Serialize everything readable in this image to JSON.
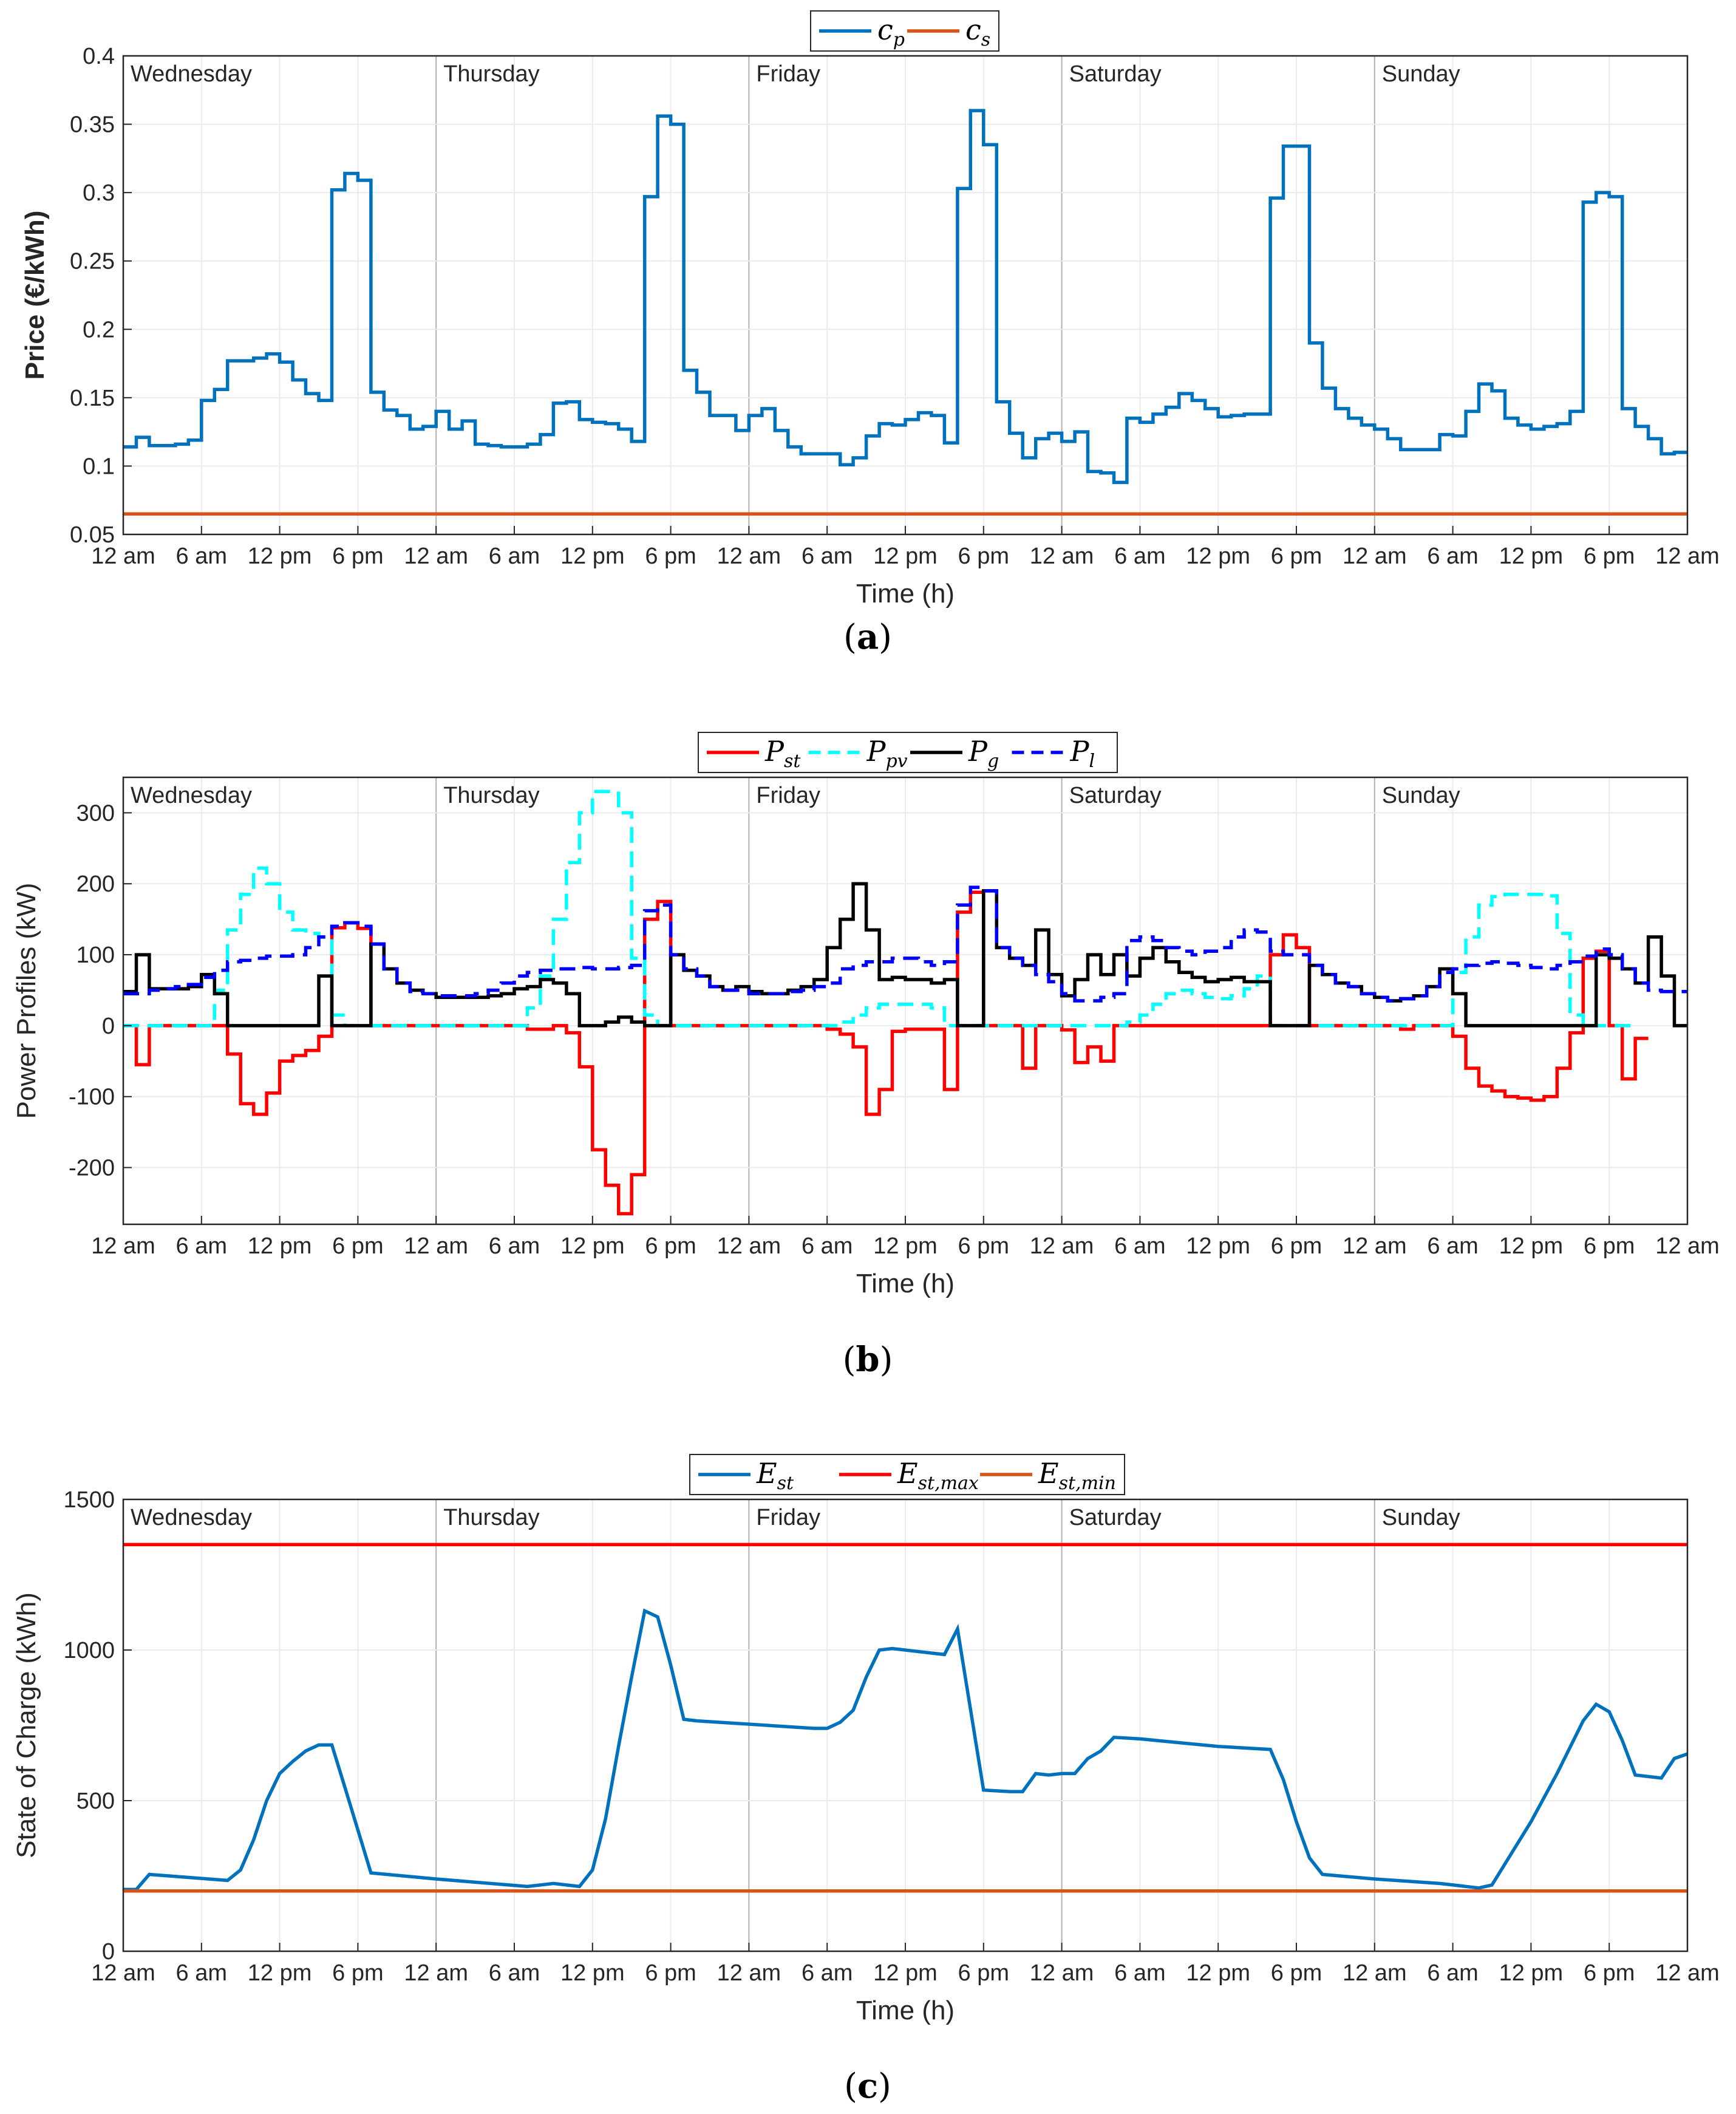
{
  "figure": {
    "caption_a": "a",
    "caption_b": "b",
    "caption_c": "c"
  },
  "colors": {
    "blue": "#0072BD",
    "orange": "#D95319",
    "red": "#FF0000",
    "cyan": "#00FFFF",
    "black": "#000000",
    "dblue": "#0000FF",
    "grid": "#EBEBEB",
    "day_sep": "#B0B0B0"
  },
  "chart_data": [
    {
      "id": "a",
      "type": "line",
      "step": true,
      "title": "",
      "xlabel": "Time (h)",
      "ylabel": "Price (€/kWh)",
      "xlim": [
        0,
        120
      ],
      "ylim": [
        0.05,
        0.4
      ],
      "yticks": [
        0.05,
        0.1,
        0.15,
        0.2,
        0.25,
        0.3,
        0.35,
        0.4
      ],
      "ytick_labels": [
        "0.05",
        "0.1",
        "0.15",
        "0.2",
        "0.25",
        "0.3",
        "0.35",
        "0.4"
      ],
      "xticks": [
        0,
        6,
        12,
        18,
        24,
        30,
        36,
        42,
        48,
        54,
        60,
        66,
        72,
        78,
        84,
        90,
        96,
        102,
        108,
        114,
        120
      ],
      "xtick_labels": [
        "12 am",
        "6 am",
        "12 pm",
        "6 pm",
        "12 am",
        "6 am",
        "12 pm",
        "6 pm",
        "12 am",
        "6 am",
        "12 pm",
        "6 pm",
        "12 am",
        "6 am",
        "12 pm",
        "6 pm",
        "12 am",
        "6 am",
        "12 pm",
        "6 pm",
        "12 am"
      ],
      "days": [
        "Wednesday",
        "Thursday",
        "Friday",
        "Saturday",
        "Sunday"
      ],
      "legend": [
        "c_p",
        "c_s"
      ],
      "legend_position": "top",
      "grid": true,
      "series": [
        {
          "name": "c_p",
          "color": "#0072BD",
          "dash": "solid",
          "values": [
            0.114,
            0.121,
            0.115,
            0.115,
            0.116,
            0.119,
            0.148,
            0.156,
            0.177,
            0.177,
            0.179,
            0.182,
            0.176,
            0.163,
            0.153,
            0.148,
            0.302,
            0.314,
            0.309,
            0.154,
            0.141,
            0.137,
            0.127,
            0.129,
            0.14,
            0.127,
            0.133,
            0.116,
            0.115,
            0.114,
            0.114,
            0.116,
            0.123,
            0.146,
            0.147,
            0.134,
            0.132,
            0.131,
            0.127,
            0.118,
            0.297,
            0.356,
            0.35,
            0.17,
            0.154,
            0.137,
            0.137,
            0.126,
            0.137,
            0.142,
            0.126,
            0.114,
            0.109,
            0.109,
            0.109,
            0.101,
            0.106,
            0.122,
            0.131,
            0.13,
            0.134,
            0.139,
            0.137,
            0.117,
            0.303,
            0.36,
            0.335,
            0.147,
            0.124,
            0.106,
            0.12,
            0.124,
            0.118,
            0.125,
            0.096,
            0.095,
            0.088,
            0.135,
            0.132,
            0.138,
            0.143,
            0.153,
            0.148,
            0.142,
            0.136,
            0.137,
            0.138,
            0.138,
            0.296,
            0.334,
            0.334,
            0.19,
            0.157,
            0.142,
            0.135,
            0.13,
            0.127,
            0.12,
            0.112,
            0.112,
            0.112,
            0.123,
            0.122,
            0.14,
            0.16,
            0.155,
            0.135,
            0.13,
            0.127,
            0.129,
            0.131,
            0.14,
            0.293,
            0.3,
            0.297,
            0.142,
            0.129,
            0.12,
            0.109,
            0.11
          ]
        },
        {
          "name": "c_s",
          "color": "#D95319",
          "dash": "solid",
          "values": [
            0.065
          ]
        }
      ]
    },
    {
      "id": "b",
      "type": "line",
      "step": true,
      "title": "",
      "xlabel": "Time (h)",
      "ylabel": "Power Profiles (kW)",
      "xlim": [
        0,
        120
      ],
      "ylim": [
        -280,
        350
      ],
      "yticks": [
        -200,
        -100,
        0,
        100,
        200,
        300
      ],
      "ytick_labels": [
        "-200",
        "-100",
        "0",
        "100",
        "200",
        "300"
      ],
      "xticks": [
        0,
        6,
        12,
        18,
        24,
        30,
        36,
        42,
        48,
        54,
        60,
        66,
        72,
        78,
        84,
        90,
        96,
        102,
        108,
        114,
        120
      ],
      "xtick_labels": [
        "12 am",
        "6 am",
        "12 pm",
        "6 pm",
        "12 am",
        "6 am",
        "12 pm",
        "6 pm",
        "12 am",
        "6 am",
        "12 pm",
        "6 pm",
        "12 am",
        "6 am",
        "12 pm",
        "6 pm",
        "12 am",
        "6 am",
        "12 pm",
        "6 pm",
        "12 am"
      ],
      "days": [
        "Wednesday",
        "Thursday",
        "Friday",
        "Saturday",
        "Sunday"
      ],
      "legend": [
        "P_st",
        "P_pv",
        "P_g",
        "P_l"
      ],
      "legend_position": "top",
      "grid": true,
      "series": [
        {
          "name": "P_st",
          "color": "#FF0000",
          "dash": "solid",
          "values": [
            0,
            -55,
            0,
            0,
            0,
            0,
            0,
            0,
            -40,
            -110,
            -125,
            -95,
            -50,
            -42,
            -35,
            -15,
            138,
            145,
            137,
            0,
            0,
            0,
            0,
            0,
            0,
            0,
            0,
            0,
            0,
            0,
            0,
            -5,
            -5,
            0,
            -10,
            -58,
            -175,
            -225,
            -265,
            -210,
            150,
            175,
            0,
            0,
            0,
            0,
            0,
            0,
            0,
            0,
            0,
            0,
            0,
            0,
            -5,
            -12,
            -30,
            -125,
            -90,
            -8,
            -5,
            -5,
            -5,
            -90,
            160,
            188,
            0,
            0,
            0,
            -60,
            0,
            0,
            -6,
            -52,
            -30,
            -50,
            0,
            0,
            0,
            0,
            0,
            0,
            0,
            0,
            0,
            0,
            0,
            0,
            100,
            128,
            110,
            0,
            0,
            0,
            0,
            0,
            0,
            0,
            -5,
            0,
            0,
            0,
            -15,
            -60,
            -85,
            -92,
            -100,
            -102,
            -105,
            -100,
            -60,
            -10,
            95,
            105,
            0,
            -75,
            -18
          ]
        },
        {
          "name": "P_pv",
          "color": "#00FFFF",
          "dash": "dashed",
          "values": [
            0,
            0,
            0,
            0,
            0,
            0,
            0,
            50,
            135,
            185,
            222,
            200,
            160,
            135,
            130,
            125,
            15,
            0,
            0,
            0,
            0,
            0,
            0,
            0,
            0,
            0,
            0,
            0,
            0,
            0,
            0,
            25,
            70,
            150,
            230,
            300,
            330,
            330,
            300,
            95,
            15,
            0,
            0,
            0,
            0,
            0,
            0,
            0,
            0,
            0,
            0,
            0,
            0,
            0,
            0,
            5,
            15,
            25,
            30,
            30,
            30,
            30,
            25,
            0,
            0,
            0,
            0,
            0,
            0,
            0,
            0,
            0,
            0,
            0,
            0,
            0,
            0,
            5,
            15,
            30,
            45,
            50,
            45,
            40,
            38,
            42,
            52,
            70,
            0,
            0,
            0,
            0,
            0,
            0,
            0,
            0,
            0,
            0,
            0,
            0,
            0,
            0,
            75,
            125,
            170,
            182,
            185,
            185,
            185,
            183,
            130,
            15,
            0,
            0,
            0,
            0
          ]
        },
        {
          "name": "P_g",
          "color": "#000000",
          "dash": "solid",
          "values": [
            48,
            100,
            52,
            52,
            52,
            55,
            72,
            45,
            0,
            0,
            0,
            0,
            0,
            0,
            0,
            70,
            0,
            0,
            0,
            115,
            80,
            60,
            50,
            45,
            40,
            40,
            40,
            40,
            42,
            45,
            52,
            55,
            65,
            60,
            45,
            0,
            0,
            5,
            12,
            5,
            0,
            0,
            100,
            78,
            70,
            55,
            50,
            55,
            48,
            45,
            45,
            50,
            55,
            65,
            110,
            150,
            200,
            135,
            65,
            68,
            65,
            65,
            60,
            65,
            0,
            0,
            190,
            110,
            95,
            85,
            135,
            72,
            42,
            65,
            100,
            72,
            100,
            70,
            95,
            110,
            90,
            75,
            68,
            62,
            65,
            68,
            62,
            62,
            0,
            0,
            0,
            85,
            72,
            60,
            55,
            45,
            40,
            35,
            38,
            42,
            55,
            80,
            45,
            0,
            0,
            0,
            0,
            0,
            0,
            0,
            0,
            0,
            0,
            100,
            95,
            80,
            60,
            125,
            70,
            0
          ]
        },
        {
          "name": "P_l",
          "color": "#0000FF",
          "dash": "dashed",
          "values": [
            45,
            45,
            50,
            52,
            55,
            58,
            68,
            78,
            90,
            92,
            95,
            98,
            98,
            100,
            110,
            125,
            140,
            145,
            140,
            115,
            80,
            60,
            48,
            45,
            42,
            42,
            42,
            45,
            50,
            60,
            70,
            75,
            78,
            80,
            80,
            82,
            80,
            80,
            82,
            85,
            162,
            170,
            100,
            80,
            70,
            55,
            50,
            50,
            45,
            45,
            45,
            48,
            50,
            55,
            60,
            80,
            85,
            90,
            90,
            95,
            95,
            90,
            85,
            90,
            170,
            195,
            190,
            110,
            95,
            85,
            72,
            62,
            45,
            35,
            35,
            40,
            45,
            120,
            125,
            120,
            110,
            105,
            100,
            105,
            110,
            125,
            135,
            132,
            105,
            100,
            100,
            85,
            72,
            60,
            55,
            45,
            40,
            35,
            38,
            42,
            55,
            75,
            80,
            85,
            88,
            90,
            88,
            85,
            82,
            80,
            85,
            90,
            98,
            108,
            100,
            80,
            60,
            50,
            48,
            48
          ]
        }
      ]
    },
    {
      "id": "c",
      "type": "line",
      "step": false,
      "title": "",
      "xlabel": "Time (h)",
      "ylabel": "State of Charge (kWh)",
      "xlim": [
        0,
        120
      ],
      "ylim": [
        0,
        1500
      ],
      "yticks": [
        0,
        500,
        1000,
        1500
      ],
      "ytick_labels": [
        "0",
        "500",
        "1000",
        "1500"
      ],
      "xticks": [
        0,
        6,
        12,
        18,
        24,
        30,
        36,
        42,
        48,
        54,
        60,
        66,
        72,
        78,
        84,
        90,
        96,
        102,
        108,
        114,
        120
      ],
      "xtick_labels": [
        "12 am",
        "6 am",
        "12 pm",
        "6 pm",
        "12 am",
        "6 am",
        "12 pm",
        "6 pm",
        "12 am",
        "6 am",
        "12 pm",
        "6 pm",
        "12 am",
        "6 am",
        "12 pm",
        "6 pm",
        "12 am",
        "6 am",
        "12 pm",
        "6 pm",
        "12 am"
      ],
      "days": [
        "Wednesday",
        "Thursday",
        "Friday",
        "Saturday",
        "Sunday"
      ],
      "legend": [
        "E_st",
        "E_st,max",
        "E_st,min"
      ],
      "legend_position": "top",
      "grid": true,
      "series": [
        {
          "name": "E_st",
          "color": "#0072BD",
          "dash": "solid",
          "x": [
            0,
            1,
            2,
            8,
            9,
            10,
            11,
            12,
            13,
            14,
            15,
            16,
            17,
            19,
            24,
            31,
            33,
            35,
            36,
            37,
            38,
            39,
            40,
            41,
            42,
            43,
            44,
            53,
            54,
            55,
            56,
            57,
            58,
            59,
            62,
            63,
            64,
            66,
            68,
            69,
            70,
            71,
            72,
            73,
            74,
            75,
            76,
            78,
            84,
            88,
            89,
            90,
            91,
            92,
            96,
            101,
            104,
            105,
            106,
            108,
            110,
            112,
            113,
            114,
            115,
            116,
            118,
            119,
            120
          ],
          "y": [
            205,
            205,
            255,
            235,
            270,
            370,
            500,
            590,
            630,
            665,
            685,
            685,
            545,
            260,
            240,
            215,
            225,
            215,
            270,
            440,
            680,
            910,
            1130,
            1110,
            950,
            770,
            765,
            740,
            740,
            760,
            800,
            910,
            1000,
            1005,
            990,
            985,
            1070,
            535,
            530,
            530,
            590,
            585,
            590,
            590,
            640,
            665,
            710,
            705,
            680,
            670,
            570,
            430,
            310,
            255,
            240,
            225,
            210,
            220,
            290,
            430,
            590,
            765,
            820,
            795,
            700,
            585,
            575,
            640,
            655
          ]
        },
        {
          "name": "E_st,max",
          "color": "#FF0000",
          "dash": "solid",
          "values": [
            1350
          ]
        },
        {
          "name": "E_st,min",
          "color": "#D95319",
          "dash": "solid",
          "values": [
            200
          ]
        }
      ]
    }
  ]
}
